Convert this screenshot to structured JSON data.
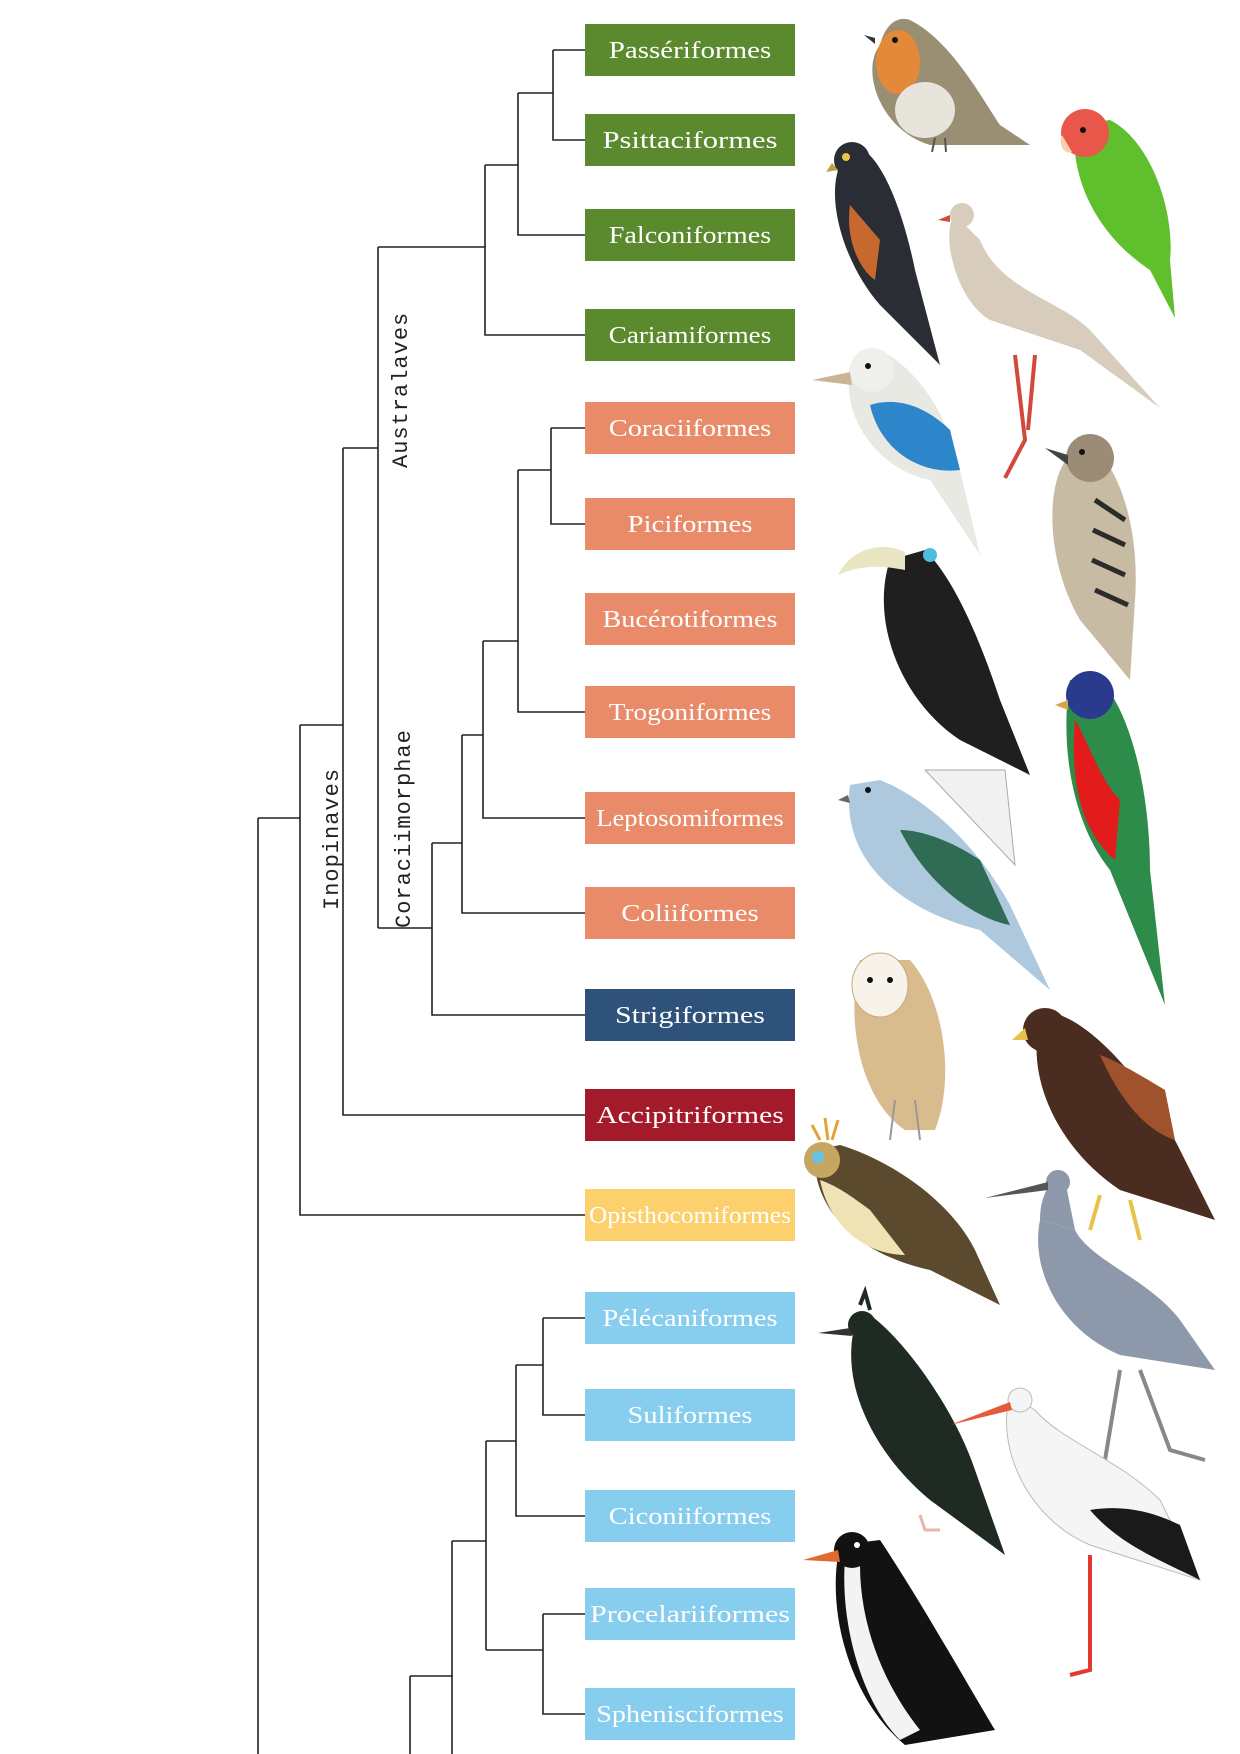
{
  "clades": {
    "inopinaves": "Inopinaves",
    "australaves": "Australaves",
    "coraciimorphae": "Coraciimorphae"
  },
  "orders": [
    {
      "name": "Passériformes",
      "color": "#5b8a2e"
    },
    {
      "name": "Psittaciformes",
      "color": "#5b8a2e"
    },
    {
      "name": "Falconiformes",
      "color": "#5b8a2e"
    },
    {
      "name": "Cariamiformes",
      "color": "#5b8a2e"
    },
    {
      "name": "Coraciiformes",
      "color": "#e98a68"
    },
    {
      "name": "Piciformes",
      "color": "#e98a68"
    },
    {
      "name": "Bucérotiformes",
      "color": "#e98a68"
    },
    {
      "name": "Trogoniformes",
      "color": "#e98a68"
    },
    {
      "name": "Leptosomiformes",
      "color": "#e98a68"
    },
    {
      "name": "Coliiformes",
      "color": "#e98a68"
    },
    {
      "name": "Strigiformes",
      "color": "#2f527b"
    },
    {
      "name": "Accipitriformes",
      "color": "#a31a2a"
    },
    {
      "name": "Opisthocomiformes",
      "color": "#fbd06d"
    },
    {
      "name": "Pélécaniformes",
      "color": "#86cdee"
    },
    {
      "name": "Suliformes",
      "color": "#86cdee"
    },
    {
      "name": "Ciconiiformes",
      "color": "#86cdee"
    },
    {
      "name": "Procelariiformes",
      "color": "#86cdee"
    },
    {
      "name": "Sphenisciformes",
      "color": "#86cdee"
    }
  ],
  "birds": [
    "robin-illustration",
    "lovebird-illustration",
    "falcon-illustration",
    "seriema-illustration",
    "kingfisher-illustration",
    "woodpecker-illustration",
    "hornbill-illustration",
    "trogon-illustration",
    "cuckoo-roller-illustration",
    "barn-owl-illustration",
    "hawk-illustration",
    "hoatzin-illustration",
    "heron-illustration",
    "shag-illustration",
    "stork-illustration",
    "penguin-illustration"
  ]
}
